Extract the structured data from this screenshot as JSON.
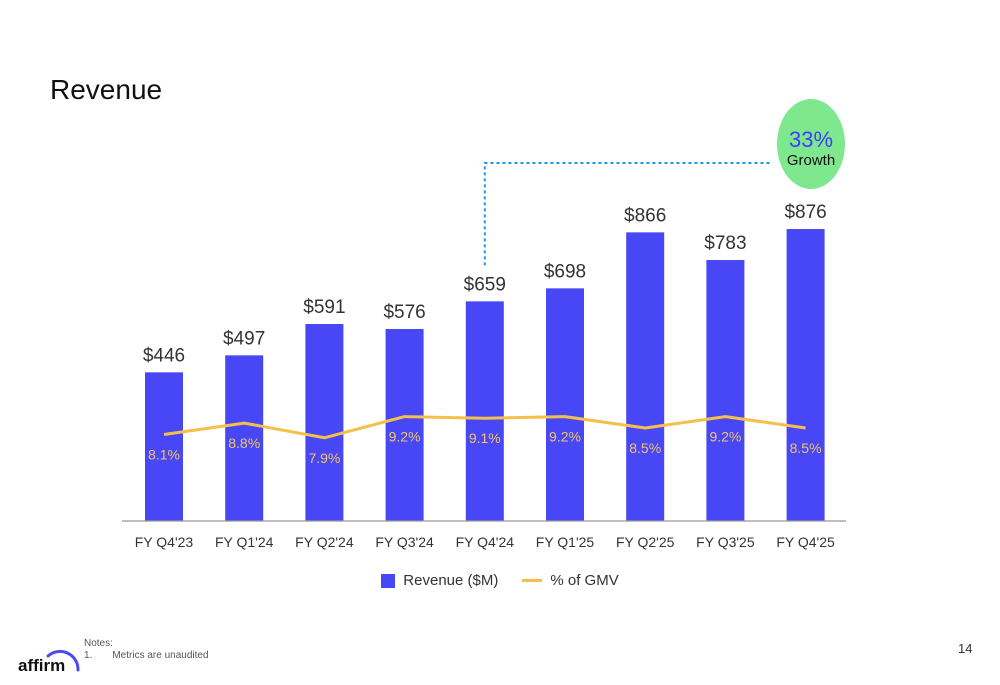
{
  "title": "Revenue",
  "chart_data": {
    "type": "bar",
    "categories": [
      "FY Q4'23",
      "FY Q1'24",
      "FY Q2'24",
      "FY Q3'24",
      "FY Q4'24",
      "FY Q1'25",
      "FY Q2'25",
      "FY Q3'25",
      "FY Q4'25"
    ],
    "series": [
      {
        "name": "Revenue ($M)",
        "type": "bar",
        "color": "#4747f5",
        "values": [
          446,
          497,
          591,
          576,
          659,
          698,
          866,
          783,
          876
        ],
        "labels": [
          "$446",
          "$497",
          "$591",
          "$576",
          "$659",
          "$698",
          "$866",
          "$783",
          "$876"
        ]
      },
      {
        "name": "% of GMV",
        "type": "line",
        "color": "#f5c04a",
        "values": [
          8.1,
          8.8,
          7.9,
          9.2,
          9.1,
          9.2,
          8.5,
          9.2,
          8.5
        ],
        "labels": [
          "8.1%",
          "8.8%",
          "7.9%",
          "9.2%",
          "9.1%",
          "9.2%",
          "8.5%",
          "9.2%",
          "8.5%"
        ]
      }
    ],
    "annotation": {
      "pct": "33%",
      "word": "Growth",
      "from_category": "FY Q4'24",
      "to_category": "FY Q4'25",
      "bubble_color": "#7fe88f",
      "connector_color": "#1a9be0"
    },
    "ylim": [
      0,
      1000
    ],
    "legend_position": "bottom"
  },
  "legend": {
    "bar_label": "Revenue ($M)",
    "line_label": "% of GMV"
  },
  "logo_text": "affirm",
  "notes": {
    "heading": "Notes:",
    "item_number": "1.",
    "item_text": "Metrics are unaudited"
  },
  "page_number": "14"
}
